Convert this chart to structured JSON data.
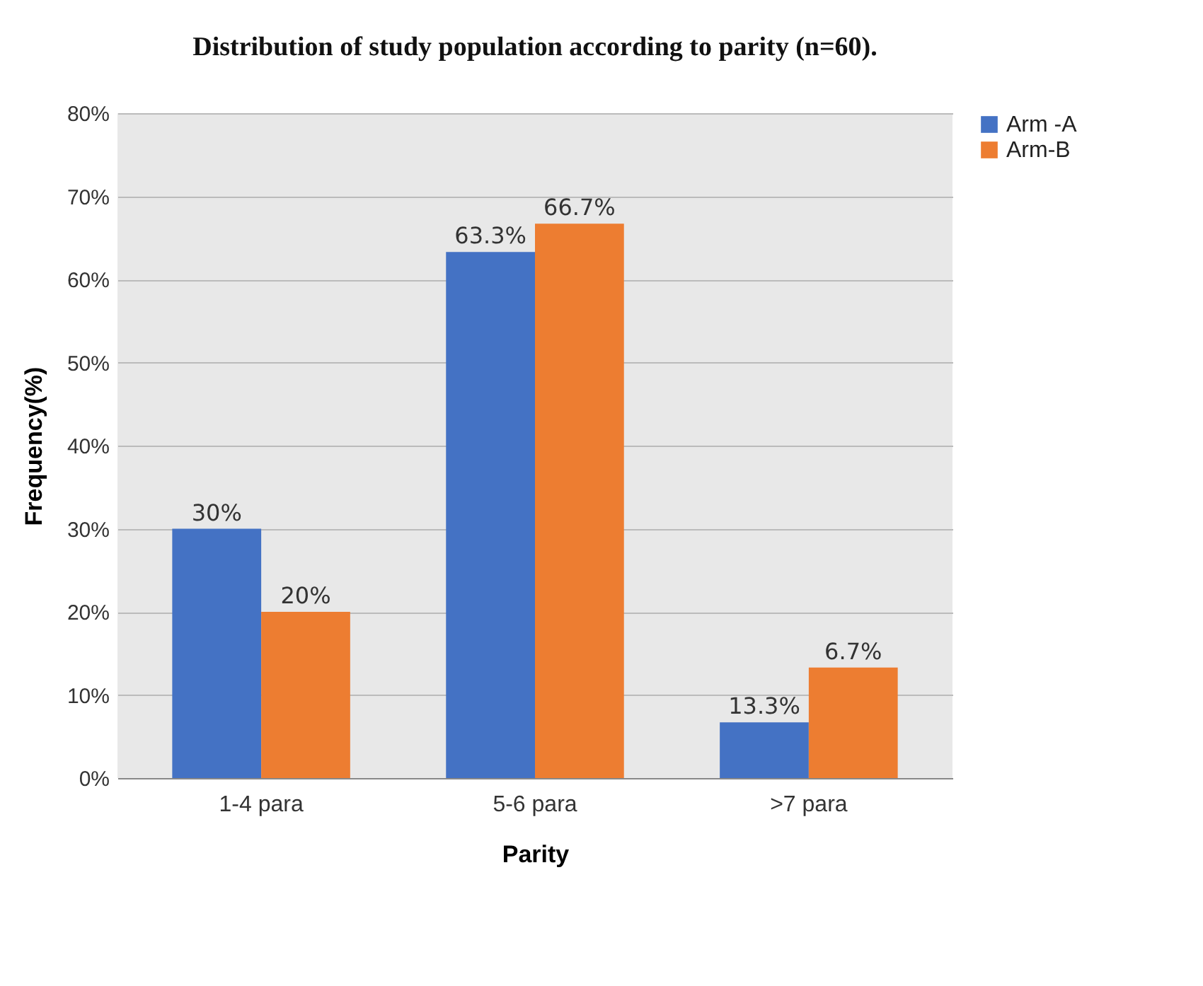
{
  "chart_data": {
    "type": "bar",
    "title": "Distribution of study population according to parity (n=60).",
    "xlabel": "Parity",
    "ylabel": "Frequency(%)",
    "categories": [
      "1-4 para",
      "5-6 para",
      ">7 para"
    ],
    "series": [
      {
        "name": "Arm -A",
        "color": "#4472c4",
        "values": [
          30,
          63.3,
          6.7
        ],
        "value_labels": [
          "30%",
          "63.3%",
          null
        ]
      },
      {
        "name": "Arm-B",
        "color": "#ed7d31",
        "values": [
          20,
          66.7,
          13.3
        ],
        "value_labels": [
          "20%",
          "66.7%",
          null
        ]
      }
    ],
    "annotations": [
      {
        "text": "13.3%",
        "x": ">7 para",
        "y": 6.7
      },
      {
        "text": "6.7%",
        "x": ">7 para",
        "y": 13.3
      }
    ],
    "ylim": [
      0,
      80
    ],
    "yticks": [
      {
        "value": 0,
        "label": "0%"
      },
      {
        "value": 10,
        "label": "10%"
      },
      {
        "value": 20,
        "label": "20%"
      },
      {
        "value": 30,
        "label": "30%"
      },
      {
        "value": 40,
        "label": "40%"
      },
      {
        "value": 50,
        "label": "50%"
      },
      {
        "value": 60,
        "label": "60%"
      },
      {
        "value": 70,
        "label": "70%"
      },
      {
        "value": 80,
        "label": "80%"
      }
    ],
    "grid": "y",
    "legend": "right"
  }
}
